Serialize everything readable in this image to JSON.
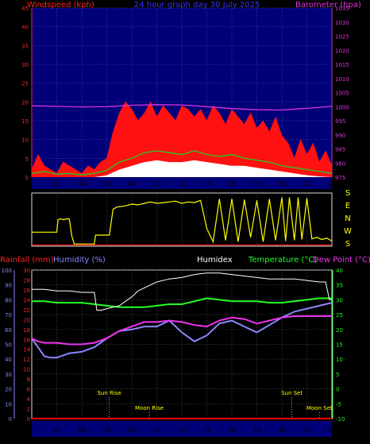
{
  "chart_data": [
    {
      "type": "line",
      "title": "24 hour graph day  30 July 2025",
      "ylabel": "Windspeed (kph)",
      "y2label": "Barometer (hpa)",
      "ylim": [
        0,
        45
      ],
      "y2lim": [
        975,
        1035
      ],
      "yticks": [
        "0",
        "5",
        "10",
        "15",
        "20",
        "25",
        "30",
        "35",
        "40",
        "45"
      ],
      "y2ticks": [
        "975",
        "980",
        "985",
        "990",
        "995",
        "1000",
        "1005",
        "1010",
        "1015",
        "1020",
        "1025",
        "1030",
        "1035"
      ],
      "xticks": [
        "02",
        "04",
        "06",
        "08",
        "10",
        "12",
        "14",
        "16",
        "18",
        "20",
        "22",
        "00"
      ],
      "grid": true,
      "series": [
        {
          "key": "barometer",
          "color": "#dd33dd",
          "x": [
            0,
            2,
            4,
            6,
            8,
            10,
            12,
            14,
            16,
            18,
            20,
            22,
            24
          ],
          "y": [
            1000.3,
            1000.1,
            999.9,
            1000.0,
            1000.5,
            1000.7,
            1000.6,
            1000.0,
            999.3,
            998.9,
            998.8,
            999.4,
            1000.1
          ]
        },
        {
          "key": "gust",
          "color": "#ff1111",
          "x": [
            0,
            0.5,
            1,
            1.5,
            2,
            2.5,
            3,
            3.5,
            4,
            4.5,
            5,
            5.5,
            6,
            6.5,
            7,
            7.5,
            8,
            8.5,
            9,
            9.5,
            10,
            10.5,
            11,
            11.5,
            12,
            12.5,
            13,
            13.5,
            14,
            14.5,
            15,
            15.5,
            16,
            16.5,
            17,
            17.5,
            18,
            18.5,
            19,
            19.5,
            20,
            20.5,
            21,
            21.5,
            22,
            22.5,
            23,
            23.5,
            24
          ],
          "y": [
            2,
            6,
            3,
            2,
            1,
            4,
            3,
            2,
            1,
            3,
            2,
            4,
            5,
            12,
            17,
            20,
            18,
            15,
            17,
            20,
            16,
            19,
            17,
            15,
            19,
            18,
            16,
            18,
            15,
            19,
            17,
            14,
            18,
            16,
            14,
            17,
            13,
            15,
            12,
            16,
            11,
            9,
            5,
            10,
            6,
            9,
            4,
            7,
            3
          ]
        },
        {
          "key": "wind",
          "color": "#22cc22",
          "x": [
            0,
            1,
            2,
            3,
            4,
            5,
            6,
            7,
            8,
            9,
            10,
            11,
            12,
            13,
            14,
            15,
            16,
            17,
            18,
            19,
            20,
            21,
            22,
            23,
            24
          ],
          "y": [
            1,
            1.5,
            0.8,
            1,
            0.6,
            1,
            1.8,
            4,
            5,
            6.5,
            7,
            6.5,
            6,
            7,
            6,
            5.5,
            6,
            5,
            4.5,
            4,
            3,
            2.5,
            2,
            1.5,
            1
          ]
        },
        {
          "key": "average",
          "color": "#ffffff",
          "x": [
            0,
            1,
            2,
            3,
            4,
            5,
            6,
            7,
            8,
            9,
            10,
            11,
            12,
            13,
            14,
            15,
            16,
            17,
            18,
            19,
            20,
            21,
            22,
            23,
            24
          ],
          "y": [
            0,
            0,
            0,
            0,
            0,
            0,
            0.5,
            2,
            3,
            4,
            4.5,
            4,
            4,
            4.5,
            4,
            3.5,
            3,
            3,
            2.5,
            2,
            1.5,
            1,
            0.5,
            0.2,
            0
          ]
        }
      ]
    },
    {
      "type": "line",
      "ylim": [
        0,
        360
      ],
      "yright": [
        "S",
        "E",
        "N",
        "W",
        "S"
      ],
      "series": [
        {
          "key": "direction",
          "color": "#ffff00",
          "x": [
            0,
            0.3,
            0.6,
            0.9,
            1.2,
            1.6,
            2.0,
            2.1,
            2.3,
            2.5,
            2.8,
            3.0,
            3.2,
            3.4,
            3.8,
            4.2,
            4.6,
            5.0,
            5.1,
            5.3,
            5.6,
            5.9,
            6.2,
            6.5,
            6.8,
            7.2,
            7.6,
            8.0,
            8.5,
            9.0,
            9.5,
            10,
            10.5,
            11,
            11.5,
            12,
            12.5,
            13,
            13.5,
            14,
            14.5,
            15,
            15.5,
            16,
            16.5,
            17,
            17.5,
            18,
            18.5,
            19,
            19.5,
            20,
            20.3,
            20.6,
            21.0,
            21.3,
            21.6,
            22.0,
            22.4,
            22.8,
            23.2,
            23.6,
            24
          ],
          "y": [
            95,
            95,
            95,
            95,
            95,
            95,
            95,
            180,
            185,
            180,
            185,
            185,
            70,
            15,
            15,
            15,
            15,
            15,
            75,
            75,
            75,
            75,
            75,
            250,
            265,
            270,
            275,
            285,
            280,
            290,
            300,
            290,
            295,
            300,
            305,
            290,
            300,
            295,
            310,
            120,
            30,
            320,
            40,
            320,
            30,
            315,
            60,
            310,
            30,
            320,
            40,
            330,
            35,
            330,
            40,
            330,
            45,
            325,
            50,
            60,
            45,
            55,
            35
          ]
        },
        {
          "key": "direction-bar",
          "color": "#ff2222",
          "x": [
            0,
            24
          ],
          "y": [
            8,
            8
          ]
        }
      ]
    },
    {
      "type": "line",
      "y_left_outer": {
        "label": "Rainfall (mm)",
        "ticks": [
          "0",
          "2",
          "4",
          "6",
          "8",
          "10",
          "12",
          "14",
          "16",
          "18",
          "20",
          "22",
          "24",
          "26",
          "28",
          "30"
        ]
      },
      "y_left_inner": {
        "label": "Humidity (%)",
        "ticks": [
          "0",
          "10",
          "20",
          "30",
          "40",
          "50",
          "60",
          "70",
          "80",
          "90",
          "100"
        ]
      },
      "y_right": {
        "label": "Dew Point (°C)",
        "ticks": [
          "-10",
          "-5",
          "0",
          "5",
          "10",
          "15",
          "20",
          "25",
          "30",
          "35",
          "40"
        ]
      },
      "labels": {
        "humidex": "Humidex",
        "temperature": "Temperature (°C)"
      },
      "ylim": [
        -10,
        40
      ],
      "xticks": [
        "02",
        "04",
        "06",
        "08",
        "10",
        "12",
        "14",
        "16",
        "18",
        "20",
        "22",
        "00"
      ],
      "grid": true,
      "events": [
        {
          "label": "Sun Rise",
          "x": 6.2,
          "row": "upper"
        },
        {
          "label": "Sun Set",
          "x": 20.8,
          "row": "upper"
        },
        {
          "label": "Moon Rise",
          "x": 9.4,
          "row": "lower"
        },
        {
          "label": "Moon Set",
          "x": 23.0,
          "row": "lower"
        }
      ],
      "series": [
        {
          "key": "humidex",
          "color": "#ffffff",
          "x": [
            0,
            1,
            2,
            3,
            4,
            4.5,
            5,
            5.2,
            5.6,
            6,
            6.5,
            7,
            7.5,
            8,
            8.5,
            9,
            9.5,
            10,
            11,
            12,
            13,
            14,
            15,
            16,
            17,
            18,
            19,
            20,
            21,
            22,
            23,
            23.5,
            23.8,
            24
          ],
          "y": [
            33.5,
            33.5,
            33,
            33,
            32.5,
            32.5,
            32.5,
            26.5,
            26.5,
            27,
            27.5,
            28,
            29.5,
            31,
            33,
            34,
            35,
            36,
            37,
            37.5,
            38.5,
            39,
            39,
            38.5,
            38,
            37.5,
            37,
            37,
            37,
            36.5,
            36,
            36,
            30,
            30
          ]
        },
        {
          "key": "temperature",
          "color": "#22ff22",
          "x": [
            0,
            1,
            2,
            3,
            4,
            5,
            6,
            7,
            8,
            9,
            10,
            11,
            12,
            13,
            14,
            15,
            16,
            17,
            18,
            19,
            20,
            21,
            22,
            23,
            24
          ],
          "y": [
            29.5,
            29.5,
            29,
            29,
            29,
            28.5,
            28,
            27.5,
            27.5,
            27.5,
            28,
            28.5,
            28.5,
            29.5,
            30.5,
            30,
            29.5,
            29.5,
            29.5,
            29,
            29,
            29.5,
            30,
            30.5,
            30.5
          ]
        },
        {
          "key": "dewpoint",
          "color": "#ee33ee",
          "x": [
            0,
            0.5,
            1,
            2,
            3,
            4,
            5,
            6,
            7,
            8,
            9,
            10,
            11,
            12,
            13,
            14,
            15,
            16,
            17,
            18,
            19,
            20,
            21,
            22,
            23,
            24
          ],
          "y": [
            17,
            16,
            15.5,
            15.5,
            15,
            15,
            15.5,
            17,
            19.5,
            21,
            22.5,
            22.5,
            23,
            22.5,
            21.5,
            21,
            23,
            24,
            23.5,
            22,
            23,
            24,
            24.5,
            24.5,
            24.5,
            24.5
          ]
        },
        {
          "key": "humidity",
          "color": "#8888ff",
          "x": [
            0,
            0.5,
            1,
            1.5,
            2,
            3,
            4,
            5,
            6,
            7,
            8,
            9,
            10,
            11,
            12,
            13,
            14,
            15,
            16,
            17,
            18,
            19,
            20,
            21,
            22,
            23,
            24
          ],
          "y": [
            17,
            14,
            11,
            10.5,
            10.5,
            12,
            12.5,
            14,
            17,
            19.5,
            20,
            21,
            21,
            23,
            19,
            16,
            18,
            22,
            23,
            21,
            19,
            21.5,
            24,
            26,
            27,
            28,
            29
          ]
        },
        {
          "key": "rain",
          "color": "#ff0000",
          "x": [
            0,
            24
          ],
          "y": [
            -10,
            -10
          ]
        }
      ]
    }
  ]
}
